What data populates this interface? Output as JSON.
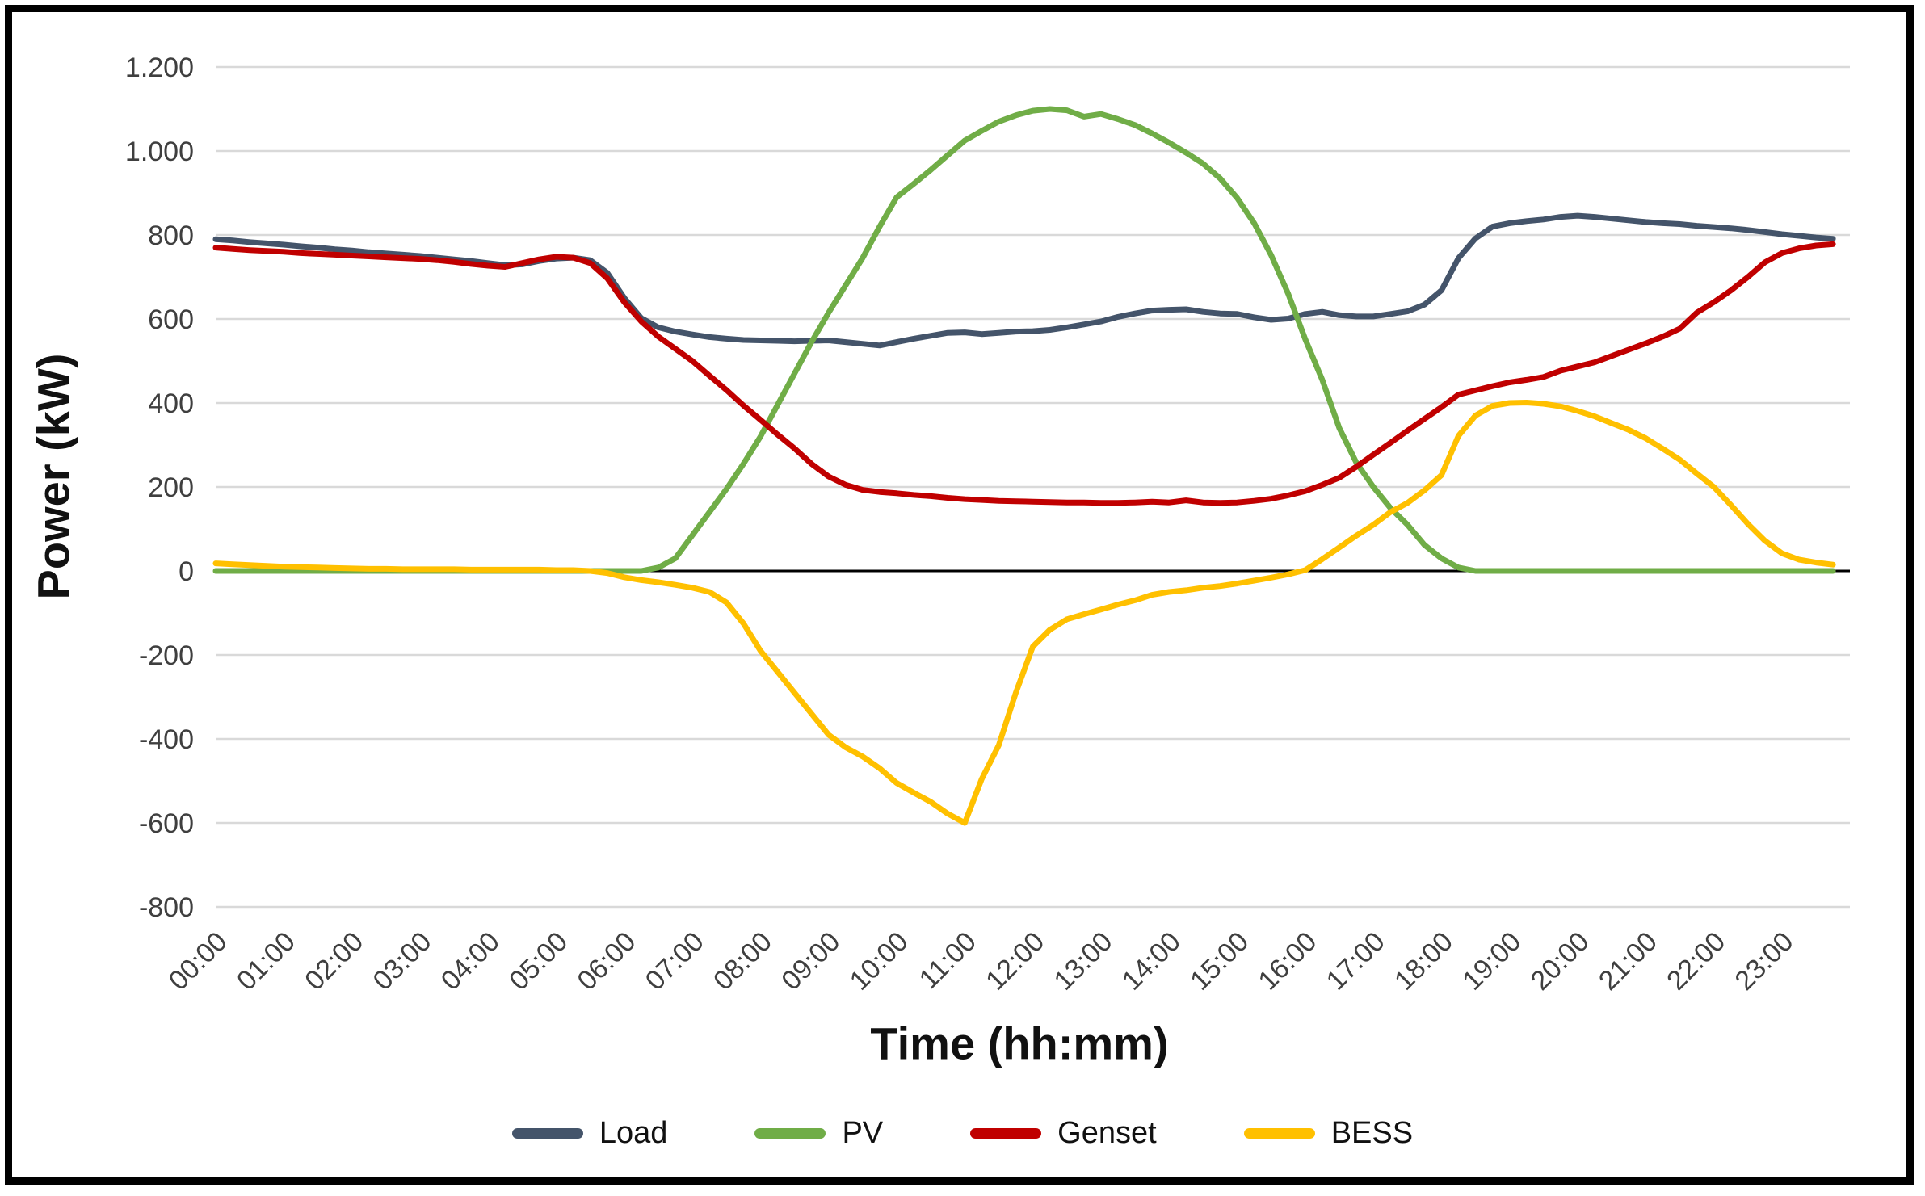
{
  "chart_data": {
    "type": "line",
    "title": "",
    "xlabel": "Time (hh:mm)",
    "ylabel": "Power (kW)",
    "x_start": "00:00",
    "x_step_minutes": 15,
    "x_end": "23:45",
    "ylim": [
      -800,
      1200
    ],
    "grid": true,
    "legend_position": "bottom",
    "background_color": "#ffffff",
    "gridline_color": "#d9d9d9",
    "zero_line_color": "#000000",
    "tick_label_color": "#3f3f3f",
    "frame_color": "#000000",
    "y_axis": {
      "tick_labels": [
        "1.200",
        "1.000",
        "800",
        "600",
        "400",
        "200",
        "0",
        "-200",
        "-400",
        "-600",
        "-800"
      ],
      "tick_values": [
        1200,
        1000,
        800,
        600,
        400,
        200,
        0,
        -200,
        -400,
        -600,
        -800
      ]
    },
    "x_axis": {
      "tick_labels": [
        "00:00",
        "01:00",
        "02:00",
        "03:00",
        "04:00",
        "05:00",
        "06:00",
        "07:00",
        "08:00",
        "09:00",
        "10:00",
        "11:00",
        "12:00",
        "13:00",
        "14:00",
        "15:00",
        "16:00",
        "17:00",
        "18:00",
        "19:00",
        "20:00",
        "21:00",
        "22:00",
        "23:00"
      ]
    },
    "series": [
      {
        "name": "Load",
        "color": "#44546A",
        "values": [
          790,
          787,
          783,
          780,
          777,
          773,
          770,
          766,
          763,
          759,
          756,
          753,
          750,
          746,
          742,
          738,
          733,
          728,
          730,
          738,
          744,
          746,
          740,
          710,
          650,
          602,
          580,
          570,
          563,
          557,
          553,
          550,
          549,
          548,
          547,
          548,
          549,
          545,
          541,
          537,
          545,
          553,
          560,
          567,
          568,
          564,
          567,
          570,
          571,
          574,
          580,
          587,
          594,
          605,
          613,
          620,
          622,
          623,
          617,
          613,
          612,
          604,
          598,
          601,
          612,
          617,
          609,
          606,
          606,
          612,
          618,
          634,
          668,
          745,
          792,
          820,
          828,
          833,
          837,
          843,
          846,
          843,
          839,
          835,
          831,
          828,
          826,
          822,
          819,
          816,
          812,
          807,
          802,
          798,
          794,
          791
        ]
      },
      {
        "name": "PV",
        "color": "#70AD47",
        "values": [
          0,
          0,
          0,
          0,
          0,
          0,
          0,
          0,
          0,
          0,
          0,
          0,
          0,
          0,
          0,
          0,
          0,
          0,
          0,
          0,
          0,
          0,
          0,
          0,
          0,
          0,
          8,
          30,
          85,
          140,
          195,
          255,
          320,
          395,
          470,
          545,
          615,
          680,
          745,
          820,
          890,
          922,
          955,
          990,
          1025,
          1048,
          1070,
          1085,
          1096,
          1100,
          1097,
          1082,
          1088,
          1076,
          1062,
          1042,
          1020,
          996,
          970,
          935,
          888,
          828,
          752,
          660,
          552,
          455,
          340,
          258,
          200,
          150,
          110,
          62,
          30,
          8,
          0,
          0,
          0,
          0,
          0,
          0,
          0,
          0,
          0,
          0,
          0,
          0,
          0,
          0,
          0,
          0,
          0,
          0,
          0,
          0,
          0,
          0
        ]
      },
      {
        "name": "Genset",
        "color": "#C00000",
        "values": [
          770,
          767,
          764,
          762,
          760,
          757,
          755,
          753,
          751,
          749,
          747,
          745,
          743,
          740,
          736,
          731,
          727,
          724,
          733,
          742,
          748,
          746,
          733,
          697,
          640,
          594,
          558,
          529,
          500,
          465,
          431,
          394,
          360,
          325,
          292,
          255,
          225,
          205,
          193,
          188,
          185,
          181,
          178,
          174,
          171,
          169,
          167,
          166,
          165,
          164,
          163,
          163,
          162,
          162,
          163,
          165,
          163,
          168,
          163,
          162,
          163,
          167,
          172,
          180,
          190,
          205,
          222,
          248,
          277,
          305,
          334,
          362,
          390,
          420,
          430,
          440,
          449,
          455,
          462,
          477,
          487,
          497,
          512,
          527,
          542,
          558,
          577,
          615,
          640,
          668,
          700,
          735,
          757,
          768,
          775,
          778
        ]
      },
      {
        "name": "BESS",
        "color": "#FFC000",
        "values": [
          18,
          16,
          14,
          12,
          10,
          9,
          8,
          7,
          6,
          5,
          5,
          4,
          4,
          4,
          4,
          3,
          3,
          3,
          3,
          3,
          2,
          2,
          0,
          -5,
          -15,
          -22,
          -27,
          -33,
          -40,
          -50,
          -75,
          -125,
          -190,
          -240,
          -290,
          -340,
          -390,
          -420,
          -442,
          -470,
          -505,
          -528,
          -550,
          -578,
          -600,
          -495,
          -415,
          -290,
          -180,
          -140,
          -115,
          -103,
          -92,
          -80,
          -70,
          -57,
          -50,
          -46,
          -40,
          -36,
          -30,
          -23,
          -16,
          -8,
          2,
          28,
          56,
          84,
          110,
          140,
          162,
          192,
          228,
          322,
          370,
          393,
          400,
          401,
          398,
          392,
          381,
          368,
          352,
          336,
          316,
          291,
          265,
          232,
          200,
          157,
          112,
          72,
          42,
          27,
          20,
          15
        ]
      }
    ]
  }
}
